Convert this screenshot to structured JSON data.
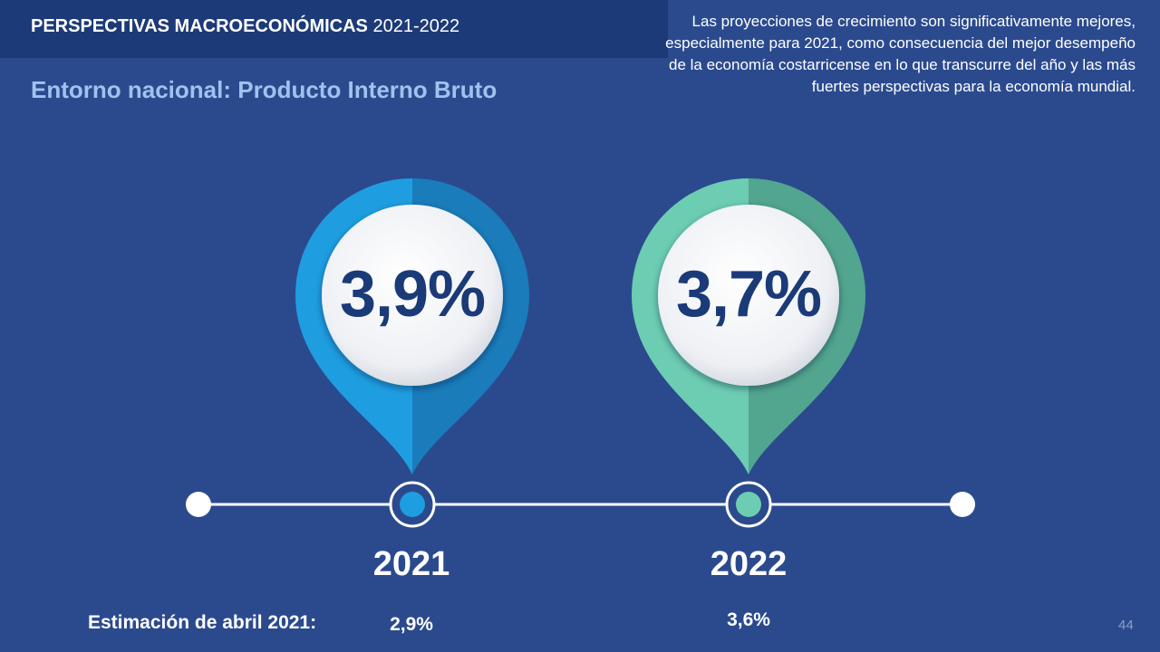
{
  "header": {
    "title_bold": "PERSPECTIVAS MACROECONÓMICAS",
    "title_years": "2021-2022"
  },
  "subtitle": "Entorno nacional: Producto Interno Bruto",
  "description": "Las proyecciones de crecimiento son significativamente mejores, especialmente para 2021, como consecuencia del mejor desempeño de la economía costarricense en lo que transcurre del año y las más fuertes perspectivas para la economía mundial.",
  "projections": [
    {
      "year": "2021",
      "value": "3,9%",
      "estimate": "2,9%",
      "color_light": "#1e9ee0",
      "color_dark": "#1a7cba"
    },
    {
      "year": "2022",
      "value": "3,7%",
      "estimate": "3,6%",
      "color_light": "#6ccdb2",
      "color_dark": "#52a58e"
    }
  ],
  "estimate_label": "Estimación de abril 2021:",
  "page_number": "44"
}
